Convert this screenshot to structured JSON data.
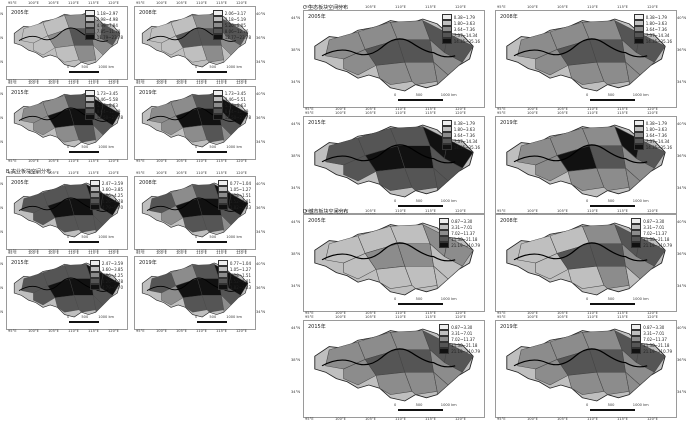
{
  "sections": [
    {
      "id": "A",
      "title": "",
      "panels": [
        {
          "year": "2005年",
          "legend": [
            "1.18~2.97",
            "2.98~4.98",
            "4.99~7.84",
            "7.85~11.78",
            "11.79~23.78"
          ],
          "shade": 0.2
        },
        {
          "year": "2008年",
          "legend": [
            "2.06~3.17",
            "3.18~5.19",
            "5.20~8.05",
            "8.06~12.76",
            "12.77~23.78"
          ],
          "shade": 0.35
        },
        {
          "year": "2015年",
          "legend": [
            "1.73~3.45",
            "3.46~5.58",
            "5.59~8.63",
            "8.64~12.49",
            "12.50~23.78"
          ],
          "shade": 0.6
        },
        {
          "year": "2019年",
          "legend": [
            "1.73~3.45",
            "3.46~5.51",
            "5.52~8.63",
            "8.64~12.49",
            "12.50~23.78"
          ],
          "shade": 0.55
        }
      ]
    },
    {
      "id": "B",
      "title": "B 农业板块空间分布",
      "panels": [
        {
          "year": "2005年",
          "legend": [
            "2.47~3.59",
            "3.60~3.85",
            "3.86~4.25",
            "4.26~4.78",
            "4.79~5.70"
          ],
          "shade": 0.85
        },
        {
          "year": "2008年",
          "legend": [
            "0.77~1.04",
            "1.05~1.27",
            "1.28~1.51",
            "1.52~1.81",
            "1.82~2.33"
          ],
          "shade": 0.65
        },
        {
          "year": "2015年",
          "legend": [
            "2.47~3.59",
            "3.60~3.85",
            "3.86~4.25",
            "4.26~4.78",
            "4.79~5.70"
          ],
          "shade": 0.85
        },
        {
          "year": "2019年",
          "legend": [
            "0.77~1.04",
            "1.05~1.27",
            "1.28~1.51",
            "1.52~1.81",
            "1.82~2.33"
          ],
          "shade": 0.7
        }
      ]
    },
    {
      "id": "C",
      "title": "C 生态板块空间分布",
      "panels": [
        {
          "year": "2005年",
          "legend": [
            "0.38~1.79",
            "1.80~3.63",
            "3.64~7.36",
            "7.37~14.34",
            "14.35~35.16"
          ],
          "shade": 0.45
        },
        {
          "year": "2008年",
          "legend": [
            "0.38~1.79",
            "1.80~3.63",
            "3.64~7.36",
            "7.37~14.34",
            "14.35~35.16"
          ],
          "shade": 0.4
        },
        {
          "year": "2015年",
          "legend": [
            "0.38~1.79",
            "1.80~3.63",
            "3.64~7.36",
            "7.37~14.34",
            "14.35~35.16"
          ],
          "shade": 0.75
        },
        {
          "year": "2019年",
          "legend": [
            "0.38~1.79",
            "1.80~3.63",
            "3.64~7.36",
            "7.37~14.34",
            "14.35~35.16"
          ],
          "shade": 0.5
        }
      ]
    },
    {
      "id": "D",
      "title": "D 城市板块空间分布",
      "panels": [
        {
          "year": "2005年",
          "legend": [
            "0.87~3.30",
            "3.31~7.01",
            "7.02~11.37",
            "11.38~21.18",
            "21.19~210.79"
          ],
          "shade": 0.15
        },
        {
          "year": "2008年",
          "legend": [
            "0.87~3.30",
            "3.31~7.01",
            "7.02~11.37",
            "11.38~21.18",
            "21.19~210.79"
          ],
          "shade": 0.25
        },
        {
          "year": "2015年",
          "legend": [
            "0.87~3.30",
            "3.31~7.01",
            "7.02~11.37",
            "11.38~21.18",
            "21.19~210.79"
          ],
          "shade": 0.45
        },
        {
          "year": "2019年",
          "legend": [
            "0.87~3.30",
            "3.31~7.01",
            "7.02~11.37",
            "11.38~21.18",
            "21.19~210.79"
          ],
          "shade": 0.4
        }
      ]
    }
  ],
  "axes": {
    "lon_ticks": [
      "95°E",
      "100°E",
      "105°E",
      "110°E",
      "115°E",
      "120°E"
    ],
    "lat_left": [
      "44°N",
      "38°N",
      "34°N"
    ],
    "lat_right": [
      "40°N",
      "36°N",
      "34°N"
    ]
  },
  "scale": {
    "zero": "0",
    "mid": "500",
    "end": "1000 km"
  },
  "palette": [
    "#ededed",
    "#bfbfbf",
    "#8c8c8c",
    "#555555",
    "#111111"
  ]
}
